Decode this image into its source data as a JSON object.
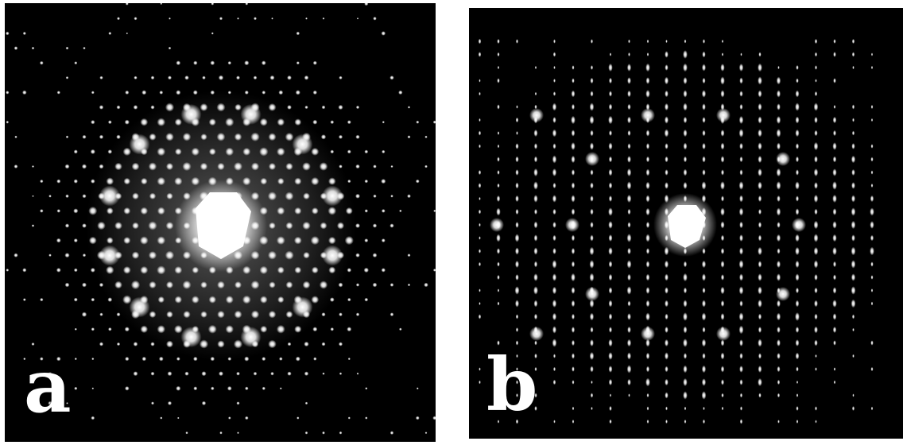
{
  "figure": {
    "panels": [
      {
        "label": "a",
        "pattern": "hexagonal-ring-diffraction"
      },
      {
        "label": "b",
        "pattern": "vertical-streak-diffraction"
      }
    ],
    "colors": {
      "background": "#000000",
      "spot": "#ffffff",
      "page": "#ffffff"
    }
  }
}
